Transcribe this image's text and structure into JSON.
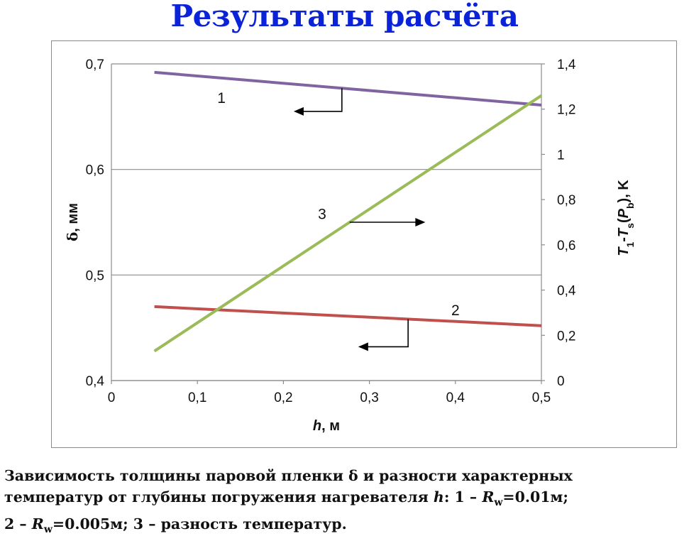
{
  "page_title": "Результаты расчёта",
  "caption": {
    "line1": "Зависимость толщины паровой пленки δ и разности характерных",
    "line2_text": "температур от глубины погружения нагревателя ",
    "line2_var": "h",
    "line2_item1": ": 1 – ",
    "line2_R": "R",
    "line2_sub": "w",
    "line2_val1": "=0.01м;",
    "line3_item2": "2 – ",
    "line3_R": "R",
    "line3_sub": "w",
    "line3_val2": "=0.005м; 3 – разность температур."
  },
  "chart_data": {
    "type": "line",
    "x_axis": {
      "label_var": "h",
      "label_unit": ", м",
      "range": [
        0,
        0.5
      ],
      "ticks": [
        "0",
        "0,1",
        "0,2",
        "0,3",
        "0,4",
        "0,5"
      ]
    },
    "y_left": {
      "label_var": "δ",
      "label_unit": ", мм",
      "range": [
        0.4,
        0.7
      ],
      "ticks": [
        "0,4",
        "0,5",
        "0,6",
        "0,7"
      ],
      "grid": true
    },
    "y_right": {
      "label": "T1-Ts(Pb), K",
      "label_parts": [
        "T",
        "1",
        "-",
        "T",
        "s",
        "(",
        "P",
        "b",
        "), K"
      ],
      "range": [
        0,
        1.4
      ],
      "ticks": [
        "0",
        "0,2",
        "0,4",
        "0,6",
        "0,8",
        "1",
        "1,2",
        "1,4"
      ]
    },
    "series": [
      {
        "label": "1",
        "axis": "left",
        "color": "#8064a2",
        "x": [
          0.05,
          0.5
        ],
        "y": [
          0.692,
          0.661
        ]
      },
      {
        "label": "2",
        "axis": "left",
        "color": "#c0504d",
        "x": [
          0.05,
          0.5
        ],
        "y": [
          0.47,
          0.452
        ]
      },
      {
        "label": "3",
        "axis": "right",
        "color": "#9bbb59",
        "x": [
          0.05,
          0.5
        ],
        "y": [
          0.13,
          1.26
        ]
      }
    ],
    "annotations": [
      {
        "text": "1",
        "axis_direction": "left"
      },
      {
        "text": "2",
        "axis_direction": "left"
      },
      {
        "text": "3",
        "axis_direction": "right"
      }
    ]
  }
}
